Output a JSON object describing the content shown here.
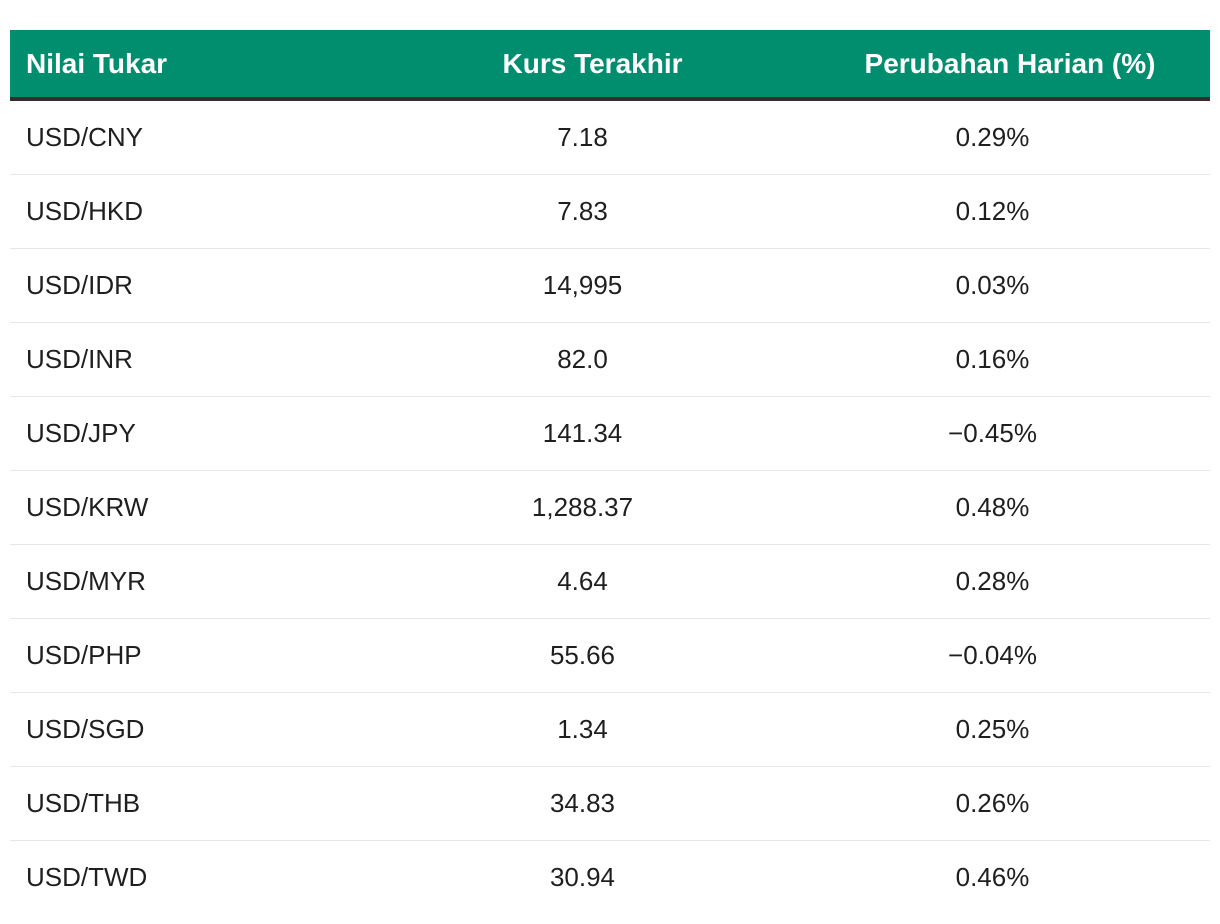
{
  "table": {
    "headers": {
      "pair": "Nilai Tukar",
      "rate": "Kurs Terakhir",
      "change": "Perubahan Harian (%)"
    },
    "rows": [
      {
        "pair": "USD/CNY",
        "rate": "7.18",
        "change": "0.29%"
      },
      {
        "pair": "USD/HKD",
        "rate": "7.83",
        "change": "0.12%"
      },
      {
        "pair": "USD/IDR",
        "rate": "14,995",
        "change": "0.03%"
      },
      {
        "pair": "USD/INR",
        "rate": "82.0",
        "change": "0.16%"
      },
      {
        "pair": "USD/JPY",
        "rate": "141.34",
        "change": "−0.45%"
      },
      {
        "pair": "USD/KRW",
        "rate": "1,288.37",
        "change": "0.48%"
      },
      {
        "pair": "USD/MYR",
        "rate": "4.64",
        "change": "0.28%"
      },
      {
        "pair": "USD/PHP",
        "rate": "55.66",
        "change": "−0.04%"
      },
      {
        "pair": "USD/SGD",
        "rate": "1.34",
        "change": "0.25%"
      },
      {
        "pair": "USD/THB",
        "rate": "34.83",
        "change": "0.26%"
      },
      {
        "pair": "USD/TWD",
        "rate": "30.94",
        "change": "0.46%"
      }
    ]
  },
  "colors": {
    "header_background": "#008e6f",
    "header_text": "#ffffff",
    "header_rule": "#2e2e2e",
    "row_divider": "#e6e6e6"
  }
}
